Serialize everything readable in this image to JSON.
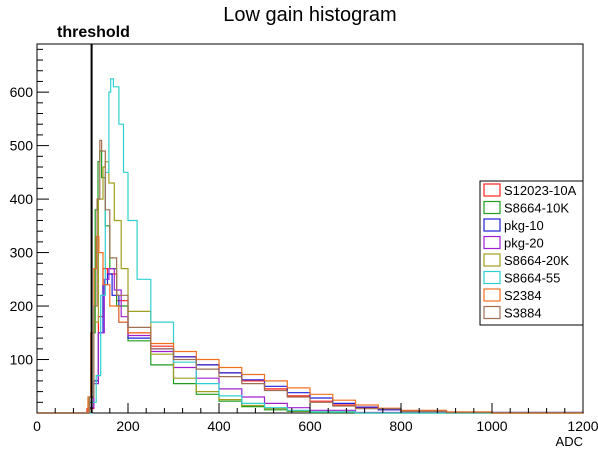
{
  "chart_data": {
    "type": "line",
    "title": "Low gain histogram",
    "xlabel": "ADC",
    "ylabel": "",
    "xlim": [
      0,
      1200
    ],
    "ylim": [
      0,
      690
    ],
    "x_ticks": [
      0,
      200,
      400,
      600,
      800,
      1000,
      1200
    ],
    "y_ticks": [
      100,
      200,
      300,
      400,
      500,
      600
    ],
    "grid": false,
    "legend_position": "right",
    "annotation": {
      "text": "threshold",
      "x": 120
    },
    "series": [
      {
        "name": "S12023-10A",
        "color": "#ff2020",
        "points": [
          [
            0,
            0
          ],
          [
            100,
            0
          ],
          [
            110,
            8
          ],
          [
            125,
            60
          ],
          [
            135,
            180
          ],
          [
            145,
            270
          ],
          [
            155,
            260
          ],
          [
            175,
            210
          ],
          [
            200,
            150
          ],
          [
            250,
            125
          ],
          [
            300,
            105
          ],
          [
            350,
            90
          ],
          [
            400,
            75
          ],
          [
            450,
            60
          ],
          [
            500,
            45
          ],
          [
            550,
            32
          ],
          [
            600,
            22
          ],
          [
            650,
            15
          ],
          [
            700,
            10
          ],
          [
            750,
            6
          ],
          [
            800,
            3
          ],
          [
            900,
            1
          ],
          [
            1000,
            0
          ],
          [
            1200,
            0
          ]
        ]
      },
      {
        "name": "S8664-10K",
        "color": "#1f9e1f",
        "points": [
          [
            0,
            0
          ],
          [
            100,
            0
          ],
          [
            112,
            20
          ],
          [
            120,
            150
          ],
          [
            128,
            380
          ],
          [
            134,
            470
          ],
          [
            138,
            490
          ],
          [
            142,
            440
          ],
          [
            150,
            350
          ],
          [
            160,
            270
          ],
          [
            175,
            200
          ],
          [
            200,
            135
          ],
          [
            250,
            90
          ],
          [
            300,
            55
          ],
          [
            350,
            35
          ],
          [
            400,
            22
          ],
          [
            450,
            12
          ],
          [
            500,
            6
          ],
          [
            550,
            3
          ],
          [
            600,
            1
          ],
          [
            700,
            0
          ],
          [
            1200,
            0
          ]
        ]
      },
      {
        "name": "pkg-10",
        "color": "#2020d8",
        "points": [
          [
            0,
            0
          ],
          [
            105,
            0
          ],
          [
            115,
            10
          ],
          [
            125,
            60
          ],
          [
            135,
            150
          ],
          [
            145,
            240
          ],
          [
            155,
            260
          ],
          [
            165,
            220
          ],
          [
            180,
            170
          ],
          [
            200,
            140
          ],
          [
            250,
            120
          ],
          [
            300,
            105
          ],
          [
            350,
            90
          ],
          [
            400,
            75
          ],
          [
            450,
            62
          ],
          [
            500,
            50
          ],
          [
            550,
            38
          ],
          [
            600,
            28
          ],
          [
            650,
            18
          ],
          [
            700,
            11
          ],
          [
            750,
            6
          ],
          [
            800,
            3
          ],
          [
            900,
            1
          ],
          [
            1200,
            0
          ]
        ]
      },
      {
        "name": "pkg-20",
        "color": "#a020d0",
        "points": [
          [
            0,
            0
          ],
          [
            105,
            0
          ],
          [
            115,
            10
          ],
          [
            125,
            55
          ],
          [
            135,
            150
          ],
          [
            148,
            250
          ],
          [
            158,
            270
          ],
          [
            170,
            230
          ],
          [
            185,
            180
          ],
          [
            200,
            145
          ],
          [
            250,
            115
          ],
          [
            300,
            85
          ],
          [
            350,
            65
          ],
          [
            400,
            45
          ],
          [
            450,
            30
          ],
          [
            500,
            18
          ],
          [
            550,
            10
          ],
          [
            600,
            5
          ],
          [
            700,
            1
          ],
          [
            1200,
            0
          ]
        ]
      },
      {
        "name": "S8664-20K",
        "color": "#a0a020",
        "points": [
          [
            0,
            0
          ],
          [
            100,
            0
          ],
          [
            115,
            30
          ],
          [
            125,
            170
          ],
          [
            135,
            400
          ],
          [
            145,
            460
          ],
          [
            150,
            470
          ],
          [
            158,
            430
          ],
          [
            170,
            360
          ],
          [
            185,
            270
          ],
          [
            200,
            190
          ],
          [
            250,
            110
          ],
          [
            300,
            65
          ],
          [
            350,
            40
          ],
          [
            400,
            25
          ],
          [
            450,
            14
          ],
          [
            500,
            8
          ],
          [
            550,
            4
          ],
          [
            600,
            2
          ],
          [
            700,
            0
          ],
          [
            1200,
            0
          ]
        ]
      },
      {
        "name": "S8664-55",
        "color": "#30d0d0",
        "points": [
          [
            0,
            0
          ],
          [
            110,
            0
          ],
          [
            120,
            20
          ],
          [
            130,
            70
          ],
          [
            140,
            220
          ],
          [
            150,
            450
          ],
          [
            158,
            600
          ],
          [
            162,
            625
          ],
          [
            168,
            610
          ],
          [
            180,
            540
          ],
          [
            190,
            450
          ],
          [
            200,
            360
          ],
          [
            220,
            250
          ],
          [
            250,
            170
          ],
          [
            300,
            95
          ],
          [
            350,
            55
          ],
          [
            400,
            32
          ],
          [
            450,
            18
          ],
          [
            500,
            10
          ],
          [
            550,
            5
          ],
          [
            600,
            2
          ],
          [
            700,
            0
          ],
          [
            1200,
            0
          ]
        ]
      },
      {
        "name": "S2384",
        "color": "#f07020",
        "points": [
          [
            0,
            0
          ],
          [
            105,
            0
          ],
          [
            112,
            30
          ],
          [
            118,
            150
          ],
          [
            125,
            270
          ],
          [
            130,
            330
          ],
          [
            136,
            300
          ],
          [
            145,
            240
          ],
          [
            160,
            200
          ],
          [
            180,
            170
          ],
          [
            200,
            150
          ],
          [
            250,
            130
          ],
          [
            300,
            115
          ],
          [
            350,
            100
          ],
          [
            400,
            85
          ],
          [
            450,
            72
          ],
          [
            500,
            60
          ],
          [
            550,
            47
          ],
          [
            600,
            35
          ],
          [
            650,
            24
          ],
          [
            700,
            15
          ],
          [
            750,
            9
          ],
          [
            800,
            5
          ],
          [
            900,
            2
          ],
          [
            1000,
            0
          ],
          [
            1200,
            0
          ]
        ]
      },
      {
        "name": "S3884",
        "color": "#a07050",
        "points": [
          [
            0,
            0
          ],
          [
            105,
            0
          ],
          [
            115,
            30
          ],
          [
            125,
            200
          ],
          [
            132,
            400
          ],
          [
            138,
            510
          ],
          [
            142,
            490
          ],
          [
            150,
            380
          ],
          [
            160,
            290
          ],
          [
            175,
            220
          ],
          [
            200,
            160
          ],
          [
            250,
            120
          ],
          [
            300,
            100
          ],
          [
            350,
            82
          ],
          [
            400,
            68
          ],
          [
            450,
            55
          ],
          [
            500,
            42
          ],
          [
            550,
            30
          ],
          [
            600,
            20
          ],
          [
            650,
            13
          ],
          [
            700,
            8
          ],
          [
            800,
            3
          ],
          [
            900,
            1
          ],
          [
            1200,
            0
          ]
        ]
      }
    ]
  }
}
